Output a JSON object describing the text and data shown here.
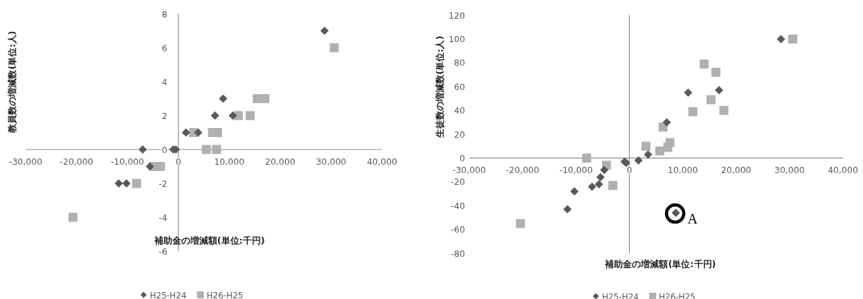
{
  "chart_data": [
    {
      "type": "scatter",
      "xlabel": "補助金の増減額(単位:千円)",
      "ylabel": "教員数の増減数(単位:人)",
      "xlim": [
        -30000,
        40000
      ],
      "ylim": [
        -6,
        8
      ],
      "xticks": [
        {
          "value": -30000,
          "label": "-30,000"
        },
        {
          "value": -20000,
          "label": "-20,000"
        },
        {
          "value": -10000,
          "label": "-10,000"
        },
        0,
        {
          "value": 10000,
          "label": "10,000"
        },
        {
          "value": 20000,
          "label": "20,000"
        },
        {
          "value": 30000,
          "label": "30,000"
        },
        {
          "value": 40000,
          "label": "40,000"
        }
      ],
      "yticks": [
        -6,
        -4,
        -2,
        0,
        2,
        4,
        6,
        8
      ],
      "legend": "bottom",
      "series": [
        {
          "name": "H25-H24",
          "color": "#595959",
          "marker": "diamond",
          "x": [
            -7000,
            -1000,
            -500,
            -5600,
            -11700,
            -10200,
            1500,
            3900,
            7200,
            8800,
            10700,
            28700
          ],
          "values": [
            0,
            0,
            0,
            -1,
            -2,
            -2,
            1,
            1,
            2,
            3,
            2,
            7
          ]
        },
        {
          "name": "H26-H25",
          "color": "#b0b0b0",
          "marker": "square",
          "x": [
            -20700,
            -8200,
            -4800,
            -3500,
            3000,
            6700,
            7700,
            5500,
            7500,
            11800,
            14100,
            15500,
            17000,
            30600
          ],
          "values": [
            -4,
            -2,
            -1,
            -1,
            1,
            1,
            1,
            0,
            0,
            2,
            2,
            3,
            3,
            6
          ]
        }
      ]
    },
    {
      "type": "scatter",
      "xlabel": "補助金の増減額(単位:千円)",
      "ylabel": "生徒数の増減数(単位:人)",
      "xlim": [
        -30000,
        40000
      ],
      "ylim": [
        -80,
        120
      ],
      "xticks": [
        {
          "value": -30000,
          "label": "-30,000"
        },
        {
          "value": -20000,
          "label": "-20,000"
        },
        {
          "value": -10000,
          "label": "-10,000"
        },
        0,
        {
          "value": 10000,
          "label": "10,000"
        },
        {
          "value": 20000,
          "label": "20,000"
        },
        {
          "value": 30000,
          "label": "30,000"
        },
        {
          "value": 40000,
          "label": "40,000"
        }
      ],
      "yticks": [
        -80,
        -60,
        -40,
        -20,
        0,
        20,
        40,
        60,
        80,
        100,
        120
      ],
      "legend": "bottom",
      "annotations": [
        {
          "text": "A",
          "x": 8700,
          "y": -46
        }
      ],
      "series": [
        {
          "name": "H25-H24",
          "color": "#595959",
          "marker": "diamond",
          "x": [
            -11600,
            -10300,
            -7000,
            -5700,
            -5400,
            -4700,
            -900,
            -600,
            1700,
            3500,
            7000,
            11000,
            16800,
            28400,
            8700
          ],
          "values": [
            -43,
            -28,
            -24,
            -22,
            -16,
            -10,
            -3,
            -4,
            -2,
            3,
            30,
            55,
            57,
            100,
            -46
          ]
        },
        {
          "name": "H26-H25",
          "color": "#b0b0b0",
          "marker": "square",
          "x": [
            -8000,
            -4300,
            -3100,
            -20400,
            3100,
            5700,
            7200,
            7600,
            6300,
            11900,
            14000,
            16200,
            15300,
            17700,
            30600
          ],
          "values": [
            0,
            -6,
            -23,
            -55,
            10,
            6,
            9,
            13,
            26,
            39,
            79,
            72,
            49,
            40,
            100
          ]
        }
      ]
    }
  ]
}
